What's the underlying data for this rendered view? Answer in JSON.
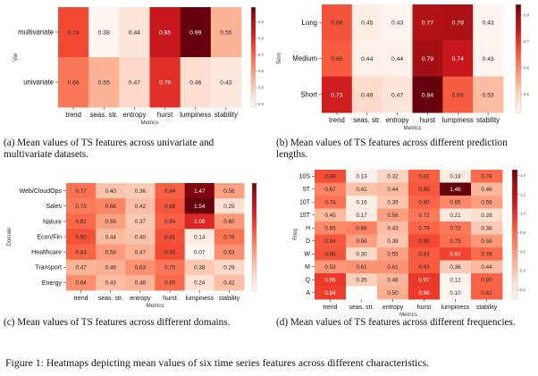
{
  "figure_caption": "Figure 1: Heatmaps depicting mean values of six time series features across different characteristics.",
  "chart_data": [
    {
      "type": "heatmap",
      "caption": "(a) Mean values of TS features across univariate and multivariate datasets.",
      "ylabel": "Var",
      "xlabel": "Metrics",
      "columns": [
        "trend",
        "seas. str.",
        "entropy",
        "hurst",
        "lumpiness",
        "stability"
      ],
      "rows": [
        "multivariate",
        "univariate"
      ],
      "values": [
        [
          0.74,
          0.38,
          0.44,
          0.85,
          0.99,
          0.55
        ],
        [
          0.66,
          0.55,
          0.47,
          0.79,
          0.46,
          0.43
        ]
      ],
      "value_labels": [
        [
          "0.74",
          "0.38",
          "0.44",
          "0.85",
          "0.99",
          "0.55"
        ],
        [
          "0.66",
          "0.55",
          "0.47",
          "0.79",
          "0.46",
          "0.43"
        ]
      ],
      "colorbar_ticks": [
        "0.9",
        "0.8",
        "0.7",
        "0.6",
        "0.5",
        "0.4"
      ],
      "vmin": 0.38,
      "vmax": 0.99,
      "colormap": "Reds"
    },
    {
      "type": "heatmap",
      "caption": "(b) Mean values of TS features across different prediction lengths.",
      "ylabel": "Term",
      "xlabel": "Metrics",
      "columns": [
        "trend",
        "seas. str.",
        "entropy",
        "hurst",
        "lumpiness",
        "stability"
      ],
      "rows": [
        "Long",
        "Medium",
        "Short"
      ],
      "values": [
        [
          0.66,
          0.45,
          0.43,
          0.77,
          0.78,
          0.43
        ],
        [
          0.65,
          0.44,
          0.44,
          0.79,
          0.74,
          0.43
        ],
        [
          0.73,
          0.49,
          0.47,
          0.84,
          0.65,
          0.53
        ]
      ],
      "value_labels": [
        [
          "0.66",
          "0.45",
          "0.43",
          "0.77",
          "0.78",
          "0.43"
        ],
        [
          "0.65",
          "0.44",
          "0.44",
          "0.79",
          "0.74",
          "0.43"
        ],
        [
          "0.73",
          "0.49",
          "0.47",
          "0.84",
          "0.65",
          "0.53"
        ]
      ],
      "colorbar_ticks": [
        "0.8",
        "0.7",
        "0.6",
        "0.5"
      ],
      "vmin": 0.43,
      "vmax": 0.84,
      "colormap": "Reds"
    },
    {
      "type": "heatmap",
      "caption": "(c) Mean values of TS features across different domains.",
      "ylabel": "Domain",
      "xlabel": "Metrics",
      "columns": [
        "trend",
        "seas. str.",
        "entropy",
        "hurst",
        "lumpiness",
        "stability"
      ],
      "rows": [
        "Web/CloudOps",
        "Sales",
        "Nature",
        "Econ/Fin",
        "Healthcare",
        "Transport",
        "Energy"
      ],
      "values": [
        [
          0.77,
          0.4,
          0.36,
          0.84,
          1.47,
          0.56
        ],
        [
          0.73,
          0.68,
          0.42,
          0.88,
          1.54,
          0.25
        ],
        [
          0.81,
          0.56,
          0.37,
          0.84,
          1.09,
          0.6
        ],
        [
          0.9,
          0.44,
          0.4,
          0.91,
          0.14,
          0.76
        ],
        [
          0.83,
          0.58,
          0.47,
          0.93,
          0.07,
          0.63
        ],
        [
          0.47,
          0.49,
          0.63,
          0.75,
          0.38,
          0.29
        ],
        [
          0.64,
          0.43,
          0.48,
          0.8,
          0.24,
          0.42
        ]
      ],
      "value_labels": [
        [
          "0.77",
          "0.40",
          "0.36",
          "0.84",
          "1.47",
          "0.56"
        ],
        [
          "0.73",
          "0.68",
          "0.42",
          "0.88",
          "1.54",
          "0.25"
        ],
        [
          "0.81",
          "0.56",
          "0.37",
          "0.84",
          "1.09",
          "0.60"
        ],
        [
          "0.90",
          "0.44",
          "0.40",
          "0.91",
          "0.14",
          "0.76"
        ],
        [
          "0.83",
          "0.58",
          "0.47",
          "0.93",
          "0.07",
          "0.63"
        ],
        [
          "0.47",
          "0.49",
          "0.63",
          "0.75",
          "0.38",
          "0.29"
        ],
        [
          "0.64",
          "0.43",
          "0.48",
          "0.80",
          "0.24",
          "0.42"
        ]
      ],
      "colorbar_ticks": [],
      "vmin": 0.07,
      "vmax": 1.54,
      "colormap": "Reds"
    },
    {
      "type": "heatmap",
      "caption": "(d) Mean values of TS features across different frequencies.",
      "ylabel": "Freq",
      "xlabel": "Metrics",
      "columns": [
        "trend",
        "seas. str.",
        "entropy",
        "hurst",
        "lumpiness",
        "stability"
      ],
      "rows": [
        "10S",
        "5T",
        "10T",
        "15T",
        "H",
        "D",
        "W",
        "M",
        "Q",
        "A"
      ],
      "values": [
        [
          0.89,
          0.13,
          0.32,
          0.82,
          0.18,
          0.78
        ],
        [
          0.67,
          0.41,
          0.44,
          0.85,
          1.46,
          0.46
        ],
        [
          0.74,
          0.16,
          0.39,
          0.8,
          0.65,
          0.56
        ],
        [
          0.45,
          0.17,
          0.56,
          0.72,
          0.21,
          0.28
        ],
        [
          0.65,
          0.68,
          0.43,
          0.79,
          0.72,
          0.38
        ],
        [
          0.84,
          0.56,
          0.39,
          0.9,
          0.75,
          0.58
        ],
        [
          0.86,
          0.3,
          0.55,
          0.83,
          0.92,
          0.78
        ],
        [
          0.59,
          0.61,
          0.61,
          0.83,
          0.36,
          0.44
        ],
        [
          0.96,
          0.35,
          0.46,
          0.97,
          0.12,
          0.8
        ],
        [
          0.94,
          null,
          0.5,
          0.96,
          0.1,
          0.81
        ]
      ],
      "value_labels": [
        [
          "0.89",
          "0.13",
          "0.32",
          "0.82",
          "0.18",
          "0.78"
        ],
        [
          "0.67",
          "0.41",
          "0.44",
          "0.85",
          "1.46",
          "0.46"
        ],
        [
          "0.74",
          "0.16",
          "0.39",
          "0.80",
          "0.65",
          "0.56"
        ],
        [
          "0.45",
          "0.17",
          "0.56",
          "0.72",
          "0.21",
          "0.28"
        ],
        [
          "0.65",
          "0.68",
          "0.43",
          "0.79",
          "0.72",
          "0.38"
        ],
        [
          "0.84",
          "0.56",
          "0.39",
          "0.90",
          "0.75",
          "0.58"
        ],
        [
          "0.86",
          "0.30",
          "0.55",
          "0.83",
          "0.92",
          "0.78"
        ],
        [
          "0.59",
          "0.61",
          "0.61",
          "0.83",
          "0.36",
          "0.44"
        ],
        [
          "0.96",
          "0.35",
          "0.46",
          "0.97",
          "0.12",
          "0.80"
        ],
        [
          "0.94",
          "",
          "0.50",
          "0.96",
          "0.10",
          "0.81"
        ]
      ],
      "colorbar_ticks": [
        "1.4",
        "1.2",
        "1.0",
        "0.8",
        "0.6",
        "0.4",
        "0.2"
      ],
      "vmin": 0.1,
      "vmax": 1.46,
      "colormap": "Reds"
    }
  ]
}
